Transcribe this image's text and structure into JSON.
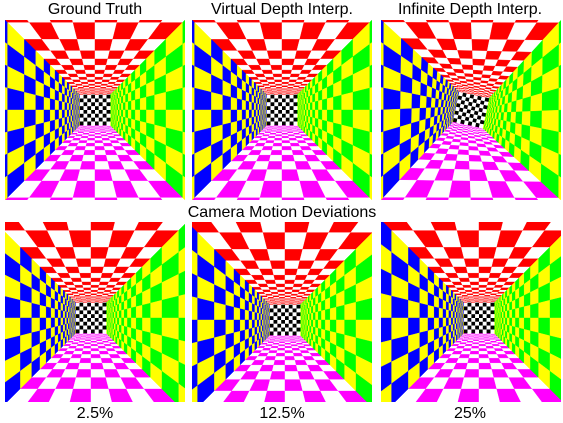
{
  "top_labels": [
    "Ground Truth",
    "Virtual Depth Interp.",
    "Infinite Depth Interp."
  ],
  "middle_label": "Camera Motion Deviations",
  "bottom_labels": [
    "2.5%",
    "12.5%",
    "25%"
  ]
}
